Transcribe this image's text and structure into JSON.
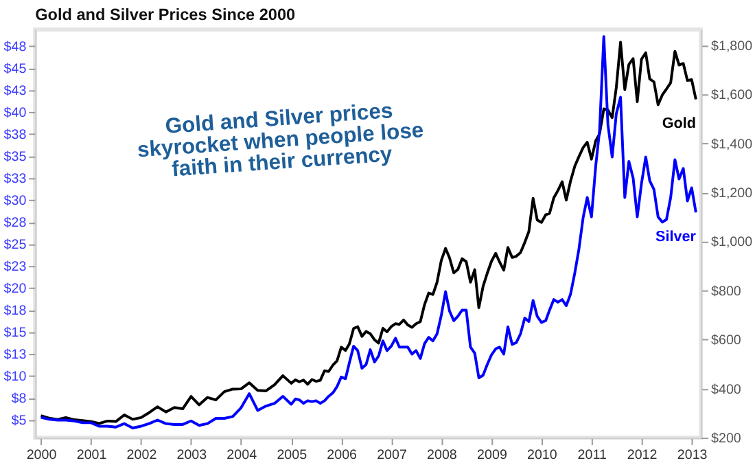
{
  "chart_data": {
    "type": "line",
    "title": "Gold and Silver Prices Since 2000",
    "x": [
      "2000-01",
      "2000-03",
      "2000-05",
      "2000-07",
      "2000-09",
      "2000-11",
      "2001-01",
      "2001-03",
      "2001-05",
      "2001-07",
      "2001-09",
      "2001-11",
      "2002-01",
      "2002-03",
      "2002-05",
      "2002-07",
      "2002-09",
      "2002-11",
      "2003-01",
      "2003-03",
      "2003-05",
      "2003-07",
      "2003-09",
      "2003-11",
      "2004-01",
      "2004-03",
      "2004-05",
      "2004-07",
      "2004-09",
      "2004-11",
      "2005-01",
      "2005-02",
      "2005-03",
      "2005-04",
      "2005-05",
      "2005-06",
      "2005-07",
      "2005-08",
      "2005-09",
      "2005-10",
      "2005-11",
      "2005-12",
      "2006-01",
      "2006-02",
      "2006-03",
      "2006-04",
      "2006-05",
      "2006-06",
      "2006-07",
      "2006-08",
      "2006-09",
      "2006-10",
      "2006-11",
      "2006-12",
      "2007-01",
      "2007-02",
      "2007-03",
      "2007-04",
      "2007-05",
      "2007-06",
      "2007-07",
      "2007-08",
      "2007-09",
      "2007-10",
      "2007-11",
      "2007-12",
      "2008-01",
      "2008-02",
      "2008-03",
      "2008-04",
      "2008-05",
      "2008-06",
      "2008-07",
      "2008-08",
      "2008-09",
      "2008-10",
      "2008-11",
      "2008-12",
      "2009-01",
      "2009-02",
      "2009-03",
      "2009-04",
      "2009-05",
      "2009-06",
      "2009-07",
      "2009-08",
      "2009-09",
      "2009-10",
      "2009-11",
      "2009-12",
      "2010-01",
      "2010-02",
      "2010-03",
      "2010-04",
      "2010-05",
      "2010-06",
      "2010-07",
      "2010-08",
      "2010-09",
      "2010-10",
      "2010-11",
      "2010-12",
      "2011-01",
      "2011-02",
      "2011-03",
      "2011-04",
      "2011-05",
      "2011-06",
      "2011-07",
      "2011-08",
      "2011-09",
      "2011-10",
      "2011-11",
      "2011-12",
      "2012-01",
      "2012-02",
      "2012-03",
      "2012-04",
      "2012-05",
      "2012-06",
      "2012-07",
      "2012-08",
      "2012-09",
      "2012-10",
      "2012-11",
      "2012-12",
      "2013-01",
      "2013-02"
    ],
    "series": [
      {
        "name": "Gold",
        "color": "#000000",
        "axis": "y2",
        "values": [
          290,
          280,
          274,
          282,
          273,
          270,
          266,
          258,
          268,
          266,
          293,
          275,
          282,
          302,
          326,
          305,
          323,
          318,
          368,
          334,
          364,
          354,
          388,
          398,
          399,
          424,
          393,
          391,
          416,
          453,
          422,
          436,
          428,
          435,
          418,
          437,
          430,
          434,
          473,
          470,
          496,
          513,
          569,
          556,
          582,
          645,
          653,
          613,
          633,
          624,
          599,
          586,
          646,
          632,
          653,
          665,
          662,
          680,
          660,
          650,
          665,
          673,
          743,
          790,
          784,
          834,
          923,
          972,
          934,
          872,
          886,
          930,
          918,
          834,
          885,
          730,
          817,
          870,
          919,
          952,
          917,
          883,
          976,
          935,
          940,
          955,
          996,
          1041,
          1176,
          1088,
          1078,
          1109,
          1115,
          1178,
          1208,
          1244,
          1169,
          1246,
          1307,
          1346,
          1383,
          1405,
          1336,
          1411,
          1439,
          1541,
          1536,
          1505,
          1628,
          1813,
          1620,
          1722,
          1746,
          1570,
          1744,
          1770,
          1663,
          1651,
          1558,
          1598,
          1622,
          1648,
          1776,
          1720,
          1726,
          1657,
          1660,
          1580
        ]
      },
      {
        "name": "Silver",
        "color": "#0000ff",
        "values": [
          5.3,
          5.1,
          5.0,
          5.0,
          4.9,
          4.7,
          4.7,
          4.3,
          4.3,
          4.2,
          4.6,
          4.1,
          4.3,
          4.6,
          5.0,
          4.6,
          4.5,
          4.5,
          4.9,
          4.4,
          4.6,
          5.2,
          5.2,
          5.4,
          6.4,
          8.0,
          6.1,
          6.6,
          6.9,
          7.7,
          6.8,
          7.4,
          7.3,
          6.9,
          7.2,
          7.1,
          7.2,
          6.9,
          7.2,
          7.7,
          8.1,
          8.8,
          9.9,
          9.7,
          11.5,
          13.4,
          12.9,
          10.9,
          11.3,
          13.0,
          11.6,
          12.3,
          14.0,
          12.9,
          13.4,
          14.3,
          13.3,
          13.3,
          13.3,
          12.5,
          12.9,
          12.0,
          13.7,
          14.4,
          14.0,
          14.8,
          16.9,
          19.6,
          17.4,
          16.3,
          16.8,
          17.5,
          17.5,
          13.3,
          12.6,
          9.8,
          10.1,
          11.3,
          12.4,
          13.1,
          13.3,
          12.5,
          15.6,
          13.6,
          13.8,
          14.8,
          16.6,
          16.2,
          18.6,
          16.8,
          16.1,
          16.3,
          17.5,
          18.7,
          18.4,
          18.7,
          18.0,
          19.3,
          21.7,
          24.4,
          28.0,
          30.3,
          28.1,
          33.9,
          37.9,
          48.6,
          38.6,
          34.9,
          39.8,
          41.7,
          30.3,
          34.4,
          32.5,
          28.1,
          31.9,
          34.9,
          32.2,
          31.2,
          28.1,
          27.5,
          27.8,
          30.3,
          34.6,
          32.4,
          33.6,
          29.9,
          31.4,
          28.6
        ]
      }
    ],
    "xlim": [
      "1999-11-20",
      "2013-03-10"
    ],
    "xticks": [
      "2000",
      "2001",
      "2002",
      "2003",
      "2004",
      "2005",
      "2006",
      "2007",
      "2008",
      "2009",
      "2010",
      "2011",
      "2012",
      "2013"
    ],
    "ylim": [
      3,
      49.4
    ],
    "yticks": [
      {
        "value": 5,
        "label": "$5"
      },
      {
        "value": 7.5,
        "label": "$8"
      },
      {
        "value": 10,
        "label": "$10"
      },
      {
        "value": 12.5,
        "label": "$13"
      },
      {
        "value": 15,
        "label": "$15"
      },
      {
        "value": 17.5,
        "label": "$18"
      },
      {
        "value": 20,
        "label": "$20"
      },
      {
        "value": 22.5,
        "label": "$23"
      },
      {
        "value": 25,
        "label": "$25"
      },
      {
        "value": 27.5,
        "label": "$28"
      },
      {
        "value": 30,
        "label": "$30"
      },
      {
        "value": 32.5,
        "label": "$33"
      },
      {
        "value": 35,
        "label": "$35"
      },
      {
        "value": 37.5,
        "label": "$38"
      },
      {
        "value": 40,
        "label": "$40"
      },
      {
        "value": 42.5,
        "label": "$43"
      },
      {
        "value": 45,
        "label": "$45"
      },
      {
        "value": 47.5,
        "label": "$48"
      }
    ],
    "y2lim": [
      200,
      1865
    ],
    "y2ticks": [
      {
        "value": 200,
        "label": "$200"
      },
      {
        "value": 400,
        "label": "$400"
      },
      {
        "value": 600,
        "label": "$600"
      },
      {
        "value": 800,
        "label": "$800"
      },
      {
        "value": 1000,
        "label": "$1,000"
      },
      {
        "value": 1200,
        "label": "$1,200"
      },
      {
        "value": 1400,
        "label": "$1,400"
      },
      {
        "value": 1600,
        "label": "$1,600"
      },
      {
        "value": 1800,
        "label": "$1,800"
      }
    ],
    "annotations": [
      "Gold and Silver prices skyrocket when people lose faith in their currency"
    ],
    "grid": false,
    "legend": false,
    "line_style": "solid"
  }
}
